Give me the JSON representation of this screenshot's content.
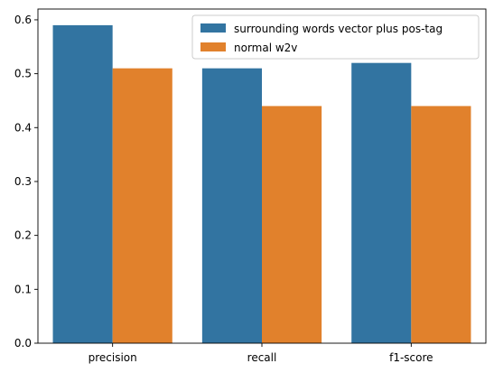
{
  "chart_data": {
    "type": "bar",
    "title": "",
    "xlabel": "",
    "ylabel": "",
    "categories": [
      "precision",
      "recall",
      "f1-score"
    ],
    "series": [
      {
        "name": "surrounding words vector plus pos-tag",
        "values": [
          0.59,
          0.51,
          0.52
        ],
        "color": "#3274a1"
      },
      {
        "name": "normal w2v",
        "values": [
          0.51,
          0.44,
          0.44
        ],
        "color": "#e1812c"
      }
    ],
    "ylim": [
      0,
      0.62
    ],
    "yticks": [
      0.0,
      0.1,
      0.2,
      0.3,
      0.4,
      0.5,
      0.6
    ],
    "ytick_labels": [
      "0.0",
      "0.1",
      "0.2",
      "0.3",
      "0.4",
      "0.5",
      "0.6"
    ],
    "grid": false,
    "legend_position": "top-right"
  }
}
